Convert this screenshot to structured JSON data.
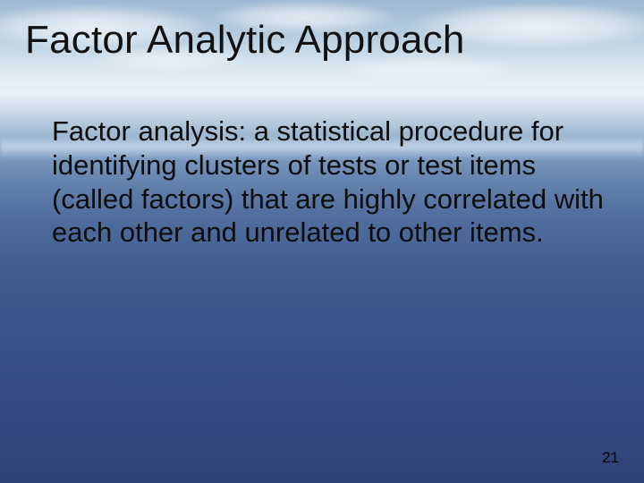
{
  "slide": {
    "title": "Factor Analytic Approach",
    "bullet": {
      "text": "Factor analysis:  a statistical procedure for identifying clusters of tests or test items (called factors) that are highly correlated with each other and unrelated to other items.",
      "dot_color": "#6b8e4e"
    },
    "page_number": "21",
    "page_number_color": "#e6d37a"
  }
}
